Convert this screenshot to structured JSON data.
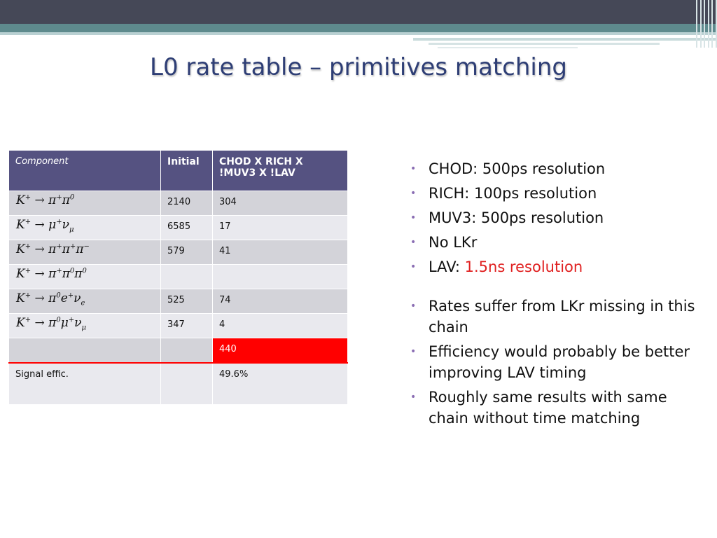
{
  "slide": {
    "title": "L0 rate table – primitives matching"
  },
  "table": {
    "headers": [
      "Component",
      "Initial",
      "CHOD X RICH X !MUV3 X !LAV"
    ],
    "rows": [
      {
        "decay": {
          "parts": [
            "K",
            "+",
            "→",
            "π",
            "+",
            "π",
            "0"
          ]
        },
        "initial": "2140",
        "value": "304"
      },
      {
        "decay": {
          "parts": [
            "K",
            "+",
            "→",
            "μ",
            "+",
            "ν",
            "μ"
          ]
        },
        "initial": "6585",
        "value": "17"
      },
      {
        "decay": {
          "parts": [
            "K",
            "+",
            "→",
            "π",
            "+",
            "π",
            "+",
            "π",
            "−"
          ]
        },
        "initial": "579",
        "value": "41"
      },
      {
        "decay": {
          "parts": [
            "K",
            "+",
            "→",
            "π",
            "+",
            "π",
            "0",
            "π",
            "0"
          ]
        },
        "initial": "",
        "value": ""
      },
      {
        "decay": {
          "parts": [
            "K",
            "+",
            "→",
            "π",
            "0",
            "e",
            "+",
            "ν",
            "e"
          ]
        },
        "initial": "525",
        "value": "74"
      },
      {
        "decay": {
          "parts": [
            "K",
            "+",
            "→",
            "π",
            "0",
            "μ",
            "+",
            "ν",
            "μ"
          ]
        },
        "initial": "347",
        "value": "4"
      },
      {
        "decay": null,
        "initial": "",
        "value": "440"
      },
      {
        "label": "Signal effic.",
        "initial": "",
        "value": "49.6%"
      }
    ]
  },
  "bullets": {
    "group1": [
      {
        "text": "CHOD: 500ps resolution"
      },
      {
        "text": "RICH: 100ps resolution"
      },
      {
        "text": "MUV3: 500ps resolution"
      },
      {
        "text": "No LKr"
      },
      {
        "prefix": "LAV: ",
        "highlight": "1.5ns resolution"
      }
    ],
    "group2": [
      {
        "text": "Rates suffer from LKr missing in this chain"
      },
      {
        "text": "Efficiency would probably be better improving LAV timing"
      },
      {
        "text": "Roughly same results with same chain without time matching"
      }
    ]
  },
  "colors": {
    "title": "#2e3e75",
    "header_bg": "#555281",
    "highlight_red": "#ff0000",
    "bullet_dot": "#8a6db3",
    "text_red": "#e02020"
  }
}
